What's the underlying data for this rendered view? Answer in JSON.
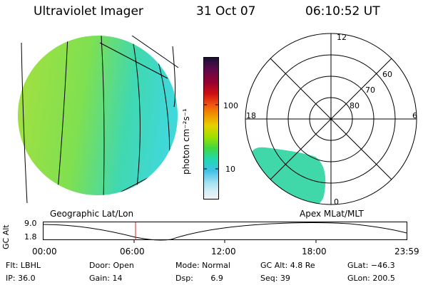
{
  "header": {
    "title": "Ultraviolet Imager",
    "date": "31 Oct 07",
    "time": "06:10:52 UT"
  },
  "colorbar": {
    "unit_label": "photon cm⁻²s⁻¹",
    "tick_labels": [
      "100",
      "10"
    ],
    "colors_top_to_bottom": [
      "#1a0f3a",
      "#5a0a4a",
      "#9a0030",
      "#d01010",
      "#f05010",
      "#f09000",
      "#e8d000",
      "#a0e000",
      "#40d840",
      "#20d8b0",
      "#40c0e8",
      "#a0e0f0",
      "#d8f0f8",
      "#f2f2f2"
    ]
  },
  "left_panel": {
    "label": "Geographic Lat/Lon",
    "disk_colors": [
      "#a6e040",
      "#40d8c8"
    ]
  },
  "right_panel": {
    "label": "Apex MLat/MLT",
    "lat_labels": [
      "60",
      "70",
      "80"
    ],
    "mlt_labels": [
      "12",
      "18",
      "6",
      "0"
    ]
  },
  "altitude_plot": {
    "ylabel": "GC Alt",
    "ytick_labels": [
      "9.0",
      "1.8"
    ],
    "xtick_labels": [
      "00:00",
      "06:00",
      "12:00",
      "18:00",
      "23:59"
    ],
    "marker_color": "#d02020"
  },
  "info": {
    "flt": "Flt: LBHL",
    "ip": "IP: 36.0",
    "door": "Door: Open",
    "gain": "Gain: 14",
    "mode": "Mode: Normal",
    "dsp": "Dsp:       6.9",
    "gc_alt": "GC Alt: 4.8 Re",
    "seq": "Seq: 39",
    "glat": "GLat: −46.3",
    "glon": "GLon: 200.5"
  }
}
